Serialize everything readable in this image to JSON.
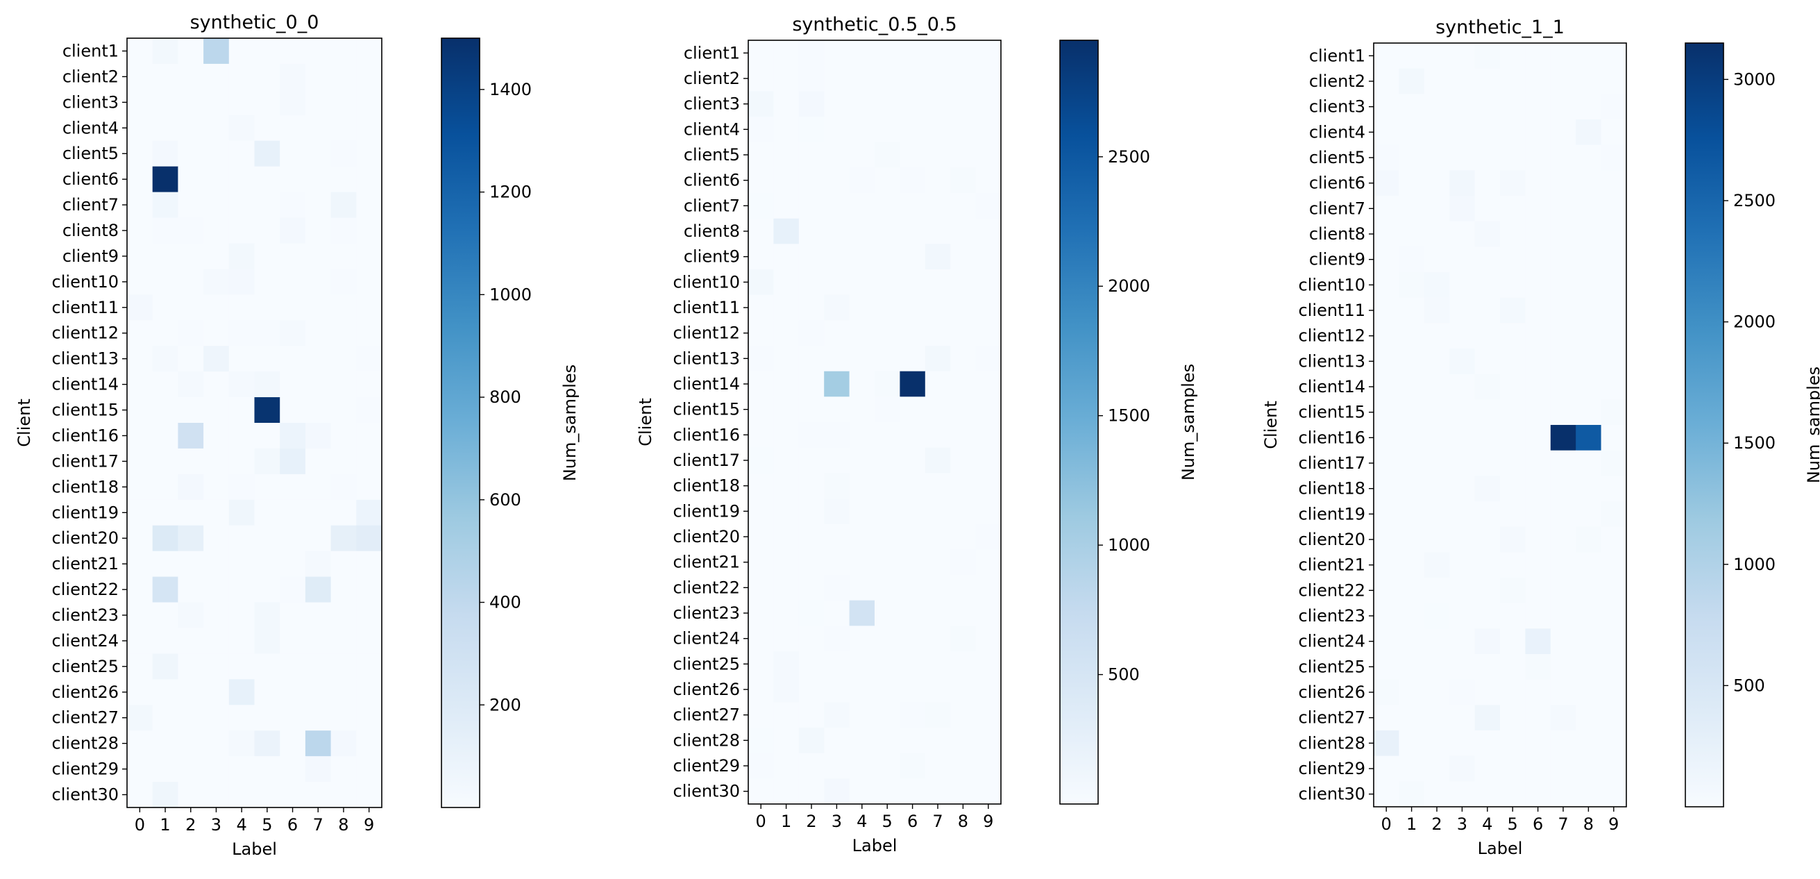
{
  "chart_data": [
    {
      "type": "heatmap",
      "title": "synthetic_0_0",
      "xlabel": "Label",
      "ylabel": "Client",
      "x_ticks": [
        "0",
        "1",
        "2",
        "3",
        "4",
        "5",
        "6",
        "7",
        "8",
        "9"
      ],
      "y_ticks": [
        "client1",
        "client2",
        "client3",
        "client4",
        "client5",
        "client6",
        "client7",
        "client8",
        "client9",
        "client10",
        "client11",
        "client12",
        "client13",
        "client14",
        "client15",
        "client16",
        "client17",
        "client18",
        "client19",
        "client20",
        "client21",
        "client22",
        "client23",
        "client24",
        "client25",
        "client26",
        "client27",
        "client28",
        "client29",
        "client30"
      ],
      "colorbar": {
        "label": "Num_samples",
        "vmin": 0,
        "vmax": 1500,
        "ticks": [
          200,
          400,
          600,
          800,
          1000,
          1200,
          1400
        ]
      },
      "colormap": "Blues",
      "values": [
        [
          0,
          40,
          0,
          420,
          0,
          0,
          0,
          0,
          0,
          0
        ],
        [
          0,
          0,
          0,
          0,
          0,
          0,
          20,
          0,
          0,
          0
        ],
        [
          0,
          0,
          0,
          0,
          0,
          0,
          20,
          0,
          0,
          0
        ],
        [
          0,
          0,
          0,
          0,
          20,
          0,
          0,
          0,
          0,
          0
        ],
        [
          0,
          30,
          0,
          0,
          0,
          120,
          0,
          0,
          10,
          0
        ],
        [
          0,
          1500,
          0,
          0,
          0,
          0,
          0,
          0,
          0,
          0
        ],
        [
          0,
          50,
          0,
          0,
          0,
          0,
          10,
          0,
          60,
          0
        ],
        [
          0,
          10,
          10,
          0,
          0,
          0,
          30,
          0,
          10,
          0
        ],
        [
          0,
          0,
          0,
          0,
          40,
          0,
          0,
          0,
          0,
          0
        ],
        [
          0,
          0,
          0,
          20,
          30,
          0,
          0,
          0,
          10,
          0
        ],
        [
          30,
          0,
          0,
          0,
          0,
          0,
          0,
          0,
          0,
          0
        ],
        [
          0,
          0,
          10,
          0,
          10,
          10,
          20,
          0,
          0,
          0
        ],
        [
          0,
          20,
          0,
          70,
          0,
          0,
          0,
          0,
          0,
          10
        ],
        [
          0,
          0,
          20,
          0,
          20,
          40,
          0,
          0,
          0,
          0
        ],
        [
          0,
          0,
          0,
          0,
          0,
          1480,
          0,
          0,
          0,
          10
        ],
        [
          0,
          0,
          300,
          0,
          0,
          0,
          80,
          30,
          0,
          0
        ],
        [
          0,
          0,
          0,
          0,
          0,
          40,
          120,
          0,
          0,
          0
        ],
        [
          0,
          0,
          30,
          0,
          10,
          0,
          0,
          0,
          10,
          0
        ],
        [
          0,
          0,
          0,
          0,
          60,
          0,
          0,
          0,
          0,
          80
        ],
        [
          0,
          200,
          130,
          0,
          0,
          0,
          0,
          0,
          130,
          160
        ],
        [
          0,
          0,
          0,
          0,
          0,
          0,
          0,
          20,
          0,
          0
        ],
        [
          0,
          260,
          0,
          0,
          0,
          0,
          10,
          180,
          0,
          0
        ],
        [
          0,
          0,
          20,
          0,
          0,
          40,
          0,
          0,
          0,
          0
        ],
        [
          0,
          0,
          0,
          0,
          0,
          40,
          0,
          0,
          0,
          0
        ],
        [
          0,
          60,
          0,
          0,
          0,
          0,
          0,
          0,
          0,
          0
        ],
        [
          0,
          0,
          0,
          0,
          120,
          0,
          0,
          0,
          0,
          0
        ],
        [
          40,
          0,
          0,
          0,
          0,
          0,
          0,
          0,
          0,
          0
        ],
        [
          0,
          0,
          0,
          0,
          20,
          90,
          0,
          420,
          30,
          0
        ],
        [
          0,
          0,
          0,
          0,
          0,
          0,
          0,
          30,
          0,
          0
        ],
        [
          0,
          60,
          0,
          0,
          0,
          0,
          0,
          0,
          0,
          0
        ]
      ]
    },
    {
      "type": "heatmap",
      "title": "synthetic_0.5_0.5",
      "xlabel": "Label",
      "ylabel": "Client",
      "x_ticks": [
        "0",
        "1",
        "2",
        "3",
        "4",
        "5",
        "6",
        "7",
        "8",
        "9"
      ],
      "y_ticks": [
        "client1",
        "client2",
        "client3",
        "client4",
        "client5",
        "client6",
        "client7",
        "client8",
        "client9",
        "client10",
        "client11",
        "client12",
        "client13",
        "client14",
        "client15",
        "client16",
        "client17",
        "client18",
        "client19",
        "client20",
        "client21",
        "client22",
        "client23",
        "client24",
        "client25",
        "client26",
        "client27",
        "client28",
        "client29",
        "client30"
      ],
      "colorbar": {
        "label": "Num_samples",
        "vmin": 0,
        "vmax": 2950,
        "ticks": [
          500,
          1000,
          1500,
          2000,
          2500
        ]
      },
      "colormap": "Blues",
      "values": [
        [
          0,
          0,
          20,
          0,
          0,
          0,
          0,
          0,
          0,
          0
        ],
        [
          0,
          0,
          20,
          0,
          0,
          0,
          0,
          0,
          0,
          0
        ],
        [
          70,
          0,
          60,
          0,
          0,
          0,
          0,
          0,
          0,
          0
        ],
        [
          20,
          0,
          10,
          0,
          0,
          0,
          0,
          0,
          0,
          0
        ],
        [
          0,
          0,
          0,
          0,
          0,
          30,
          0,
          0,
          0,
          0
        ],
        [
          0,
          0,
          0,
          0,
          20,
          0,
          20,
          0,
          30,
          0
        ],
        [
          10,
          0,
          0,
          0,
          0,
          0,
          0,
          0,
          0,
          20
        ],
        [
          0,
          230,
          0,
          0,
          0,
          0,
          0,
          0,
          0,
          0
        ],
        [
          0,
          0,
          0,
          0,
          0,
          0,
          0,
          90,
          0,
          0
        ],
        [
          80,
          0,
          0,
          0,
          0,
          0,
          0,
          0,
          0,
          0
        ],
        [
          0,
          0,
          0,
          40,
          0,
          0,
          0,
          0,
          0,
          0
        ],
        [
          0,
          0,
          20,
          0,
          0,
          0,
          0,
          0,
          0,
          0
        ],
        [
          20,
          0,
          0,
          0,
          0,
          0,
          0,
          70,
          0,
          20
        ],
        [
          0,
          0,
          0,
          1050,
          0,
          30,
          2950,
          0,
          0,
          0
        ],
        [
          0,
          0,
          0,
          0,
          0,
          20,
          0,
          0,
          0,
          0
        ],
        [
          0,
          0,
          20,
          20,
          0,
          0,
          0,
          0,
          0,
          0
        ],
        [
          10,
          0,
          0,
          0,
          0,
          0,
          0,
          80,
          0,
          0
        ],
        [
          0,
          0,
          0,
          30,
          0,
          0,
          0,
          0,
          0,
          0
        ],
        [
          0,
          0,
          0,
          40,
          0,
          0,
          0,
          0,
          0,
          0
        ],
        [
          0,
          0,
          0,
          0,
          0,
          0,
          0,
          0,
          0,
          20
        ],
        [
          0,
          0,
          0,
          0,
          0,
          0,
          0,
          0,
          20,
          0
        ],
        [
          0,
          0,
          0,
          20,
          0,
          0,
          0,
          0,
          0,
          0
        ],
        [
          0,
          0,
          10,
          0,
          560,
          0,
          0,
          0,
          0,
          0
        ],
        [
          0,
          0,
          0,
          20,
          0,
          0,
          0,
          0,
          30,
          0
        ],
        [
          0,
          40,
          0,
          0,
          0,
          0,
          0,
          0,
          0,
          0
        ],
        [
          0,
          50,
          0,
          0,
          0,
          0,
          0,
          0,
          0,
          0
        ],
        [
          0,
          0,
          0,
          40,
          0,
          0,
          20,
          30,
          0,
          0
        ],
        [
          10,
          0,
          80,
          0,
          0,
          0,
          0,
          0,
          0,
          0
        ],
        [
          20,
          0,
          0,
          0,
          0,
          0,
          30,
          0,
          0,
          0
        ],
        [
          0,
          0,
          0,
          60,
          0,
          0,
          0,
          0,
          0,
          0
        ]
      ]
    },
    {
      "type": "heatmap",
      "title": "synthetic_1_1",
      "xlabel": "Label",
      "ylabel": "Client",
      "x_ticks": [
        "0",
        "1",
        "2",
        "3",
        "4",
        "5",
        "6",
        "7",
        "8",
        "9"
      ],
      "y_ticks": [
        "client1",
        "client2",
        "client3",
        "client4",
        "client5",
        "client6",
        "client7",
        "client8",
        "client9",
        "client10",
        "client11",
        "client12",
        "client13",
        "client14",
        "client15",
        "client16",
        "client17",
        "client18",
        "client19",
        "client20",
        "client21",
        "client22",
        "client23",
        "client24",
        "client25",
        "client26",
        "client27",
        "client28",
        "client29",
        "client30"
      ],
      "colorbar": {
        "label": "Num_samples",
        "vmin": 0,
        "vmax": 3150,
        "ticks": [
          500,
          1000,
          1500,
          2000,
          2500,
          3000
        ]
      },
      "colormap": "Blues",
      "values": [
        [
          0,
          0,
          0,
          0,
          30,
          0,
          0,
          0,
          0,
          0
        ],
        [
          0,
          80,
          0,
          0,
          0,
          0,
          0,
          0,
          0,
          0
        ],
        [
          0,
          0,
          0,
          0,
          0,
          0,
          0,
          0,
          0,
          20
        ],
        [
          0,
          0,
          0,
          0,
          0,
          0,
          0,
          0,
          90,
          0
        ],
        [
          20,
          0,
          0,
          0,
          0,
          0,
          0,
          0,
          0,
          20
        ],
        [
          70,
          0,
          0,
          100,
          0,
          50,
          0,
          0,
          0,
          0
        ],
        [
          0,
          0,
          0,
          70,
          0,
          0,
          0,
          0,
          0,
          0
        ],
        [
          0,
          0,
          0,
          0,
          50,
          0,
          0,
          0,
          0,
          0
        ],
        [
          0,
          20,
          0,
          0,
          0,
          0,
          0,
          0,
          0,
          0
        ],
        [
          0,
          30,
          60,
          0,
          0,
          0,
          0,
          0,
          0,
          0
        ],
        [
          0,
          0,
          40,
          0,
          0,
          60,
          0,
          0,
          0,
          0
        ],
        [
          0,
          0,
          0,
          0,
          0,
          0,
          0,
          0,
          0,
          0
        ],
        [
          0,
          0,
          0,
          60,
          0,
          0,
          0,
          0,
          0,
          0
        ],
        [
          0,
          0,
          0,
          0,
          30,
          0,
          0,
          0,
          0,
          0
        ],
        [
          0,
          0,
          0,
          0,
          0,
          0,
          0,
          0,
          0,
          30
        ],
        [
          0,
          0,
          0,
          0,
          0,
          0,
          0,
          3150,
          2650,
          0
        ],
        [
          0,
          0,
          0,
          0,
          0,
          0,
          0,
          0,
          0,
          30
        ],
        [
          0,
          0,
          0,
          0,
          40,
          0,
          0,
          0,
          0,
          0
        ],
        [
          0,
          0,
          0,
          0,
          0,
          0,
          0,
          0,
          0,
          30
        ],
        [
          0,
          0,
          0,
          0,
          0,
          40,
          0,
          0,
          30,
          0
        ],
        [
          0,
          0,
          40,
          0,
          0,
          0,
          0,
          0,
          0,
          0
        ],
        [
          0,
          0,
          0,
          0,
          0,
          30,
          0,
          0,
          0,
          0
        ],
        [
          0,
          0,
          10,
          0,
          0,
          0,
          0,
          0,
          0,
          0
        ],
        [
          0,
          0,
          0,
          0,
          70,
          0,
          220,
          0,
          0,
          0
        ],
        [
          0,
          0,
          0,
          0,
          0,
          0,
          30,
          0,
          0,
          0
        ],
        [
          30,
          0,
          0,
          20,
          0,
          0,
          0,
          0,
          0,
          0
        ],
        [
          0,
          0,
          0,
          0,
          130,
          0,
          0,
          50,
          0,
          0
        ],
        [
          240,
          0,
          0,
          0,
          0,
          0,
          0,
          0,
          0,
          0
        ],
        [
          0,
          0,
          0,
          50,
          0,
          0,
          0,
          0,
          0,
          0
        ],
        [
          0,
          30,
          0,
          0,
          0,
          0,
          0,
          0,
          0,
          0
        ]
      ]
    }
  ]
}
